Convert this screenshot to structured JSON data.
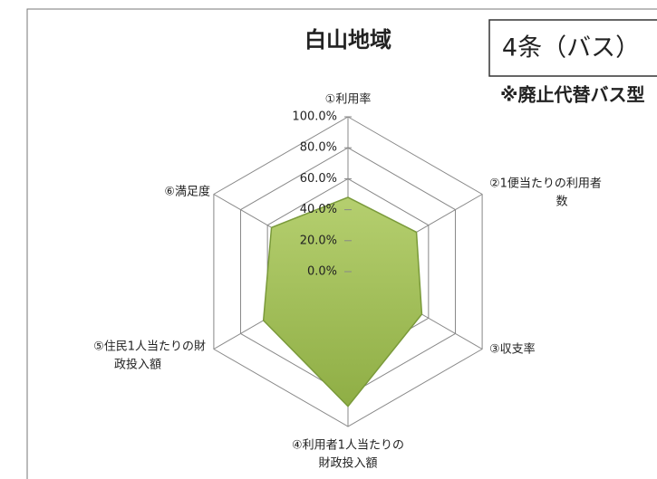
{
  "chart_data": {
    "type": "radar",
    "title": "白山地域",
    "annotations": [
      "4条（バス）",
      "※廃止代替バス型"
    ],
    "categories": [
      [
        "①利用率"
      ],
      [
        "②1便当たりの利用者",
        "数"
      ],
      [
        "③収支率"
      ],
      [
        "④利用者1人当たりの",
        "財政投入額"
      ],
      [
        "⑤住民1人当たりの財",
        "政投入額"
      ],
      [
        "⑥満足度"
      ]
    ],
    "values": [
      48,
      51,
      55,
      87,
      63,
      57
    ],
    "color": "#9bbb59",
    "rlim": [
      0,
      100
    ],
    "rticks": [
      {
        "value": 0,
        "label": "0.0%"
      },
      {
        "value": 20,
        "label": "20.0%"
      },
      {
        "value": 40,
        "label": "40.0%"
      },
      {
        "value": 60,
        "label": "60.0%"
      },
      {
        "value": 80,
        "label": "80.0%"
      },
      {
        "value": 100,
        "label": "100.0%"
      }
    ],
    "grid": true
  }
}
